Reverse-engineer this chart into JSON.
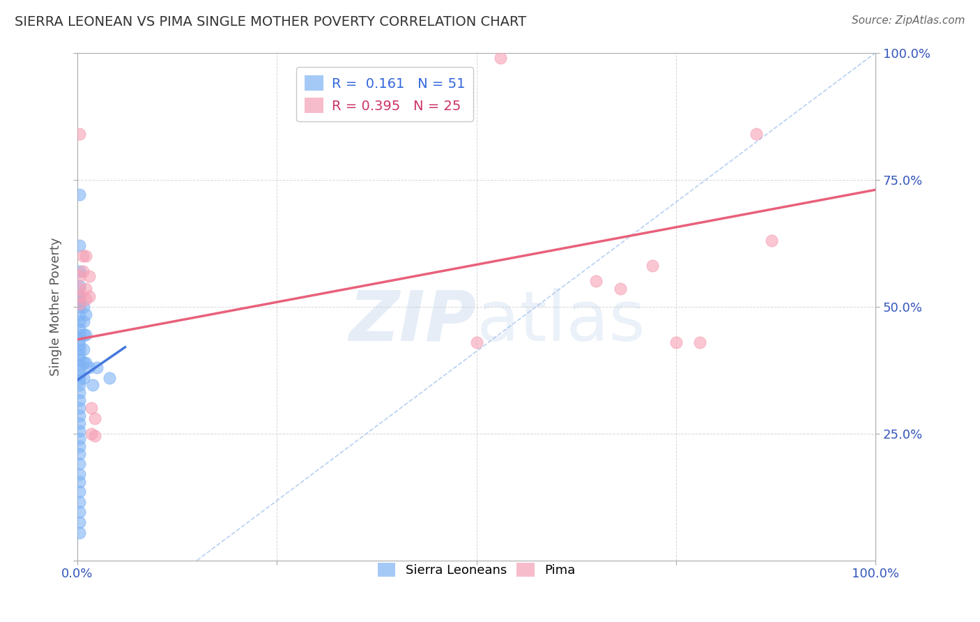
{
  "title": "SIERRA LEONEAN VS PIMA SINGLE MOTHER POVERTY CORRELATION CHART",
  "source": "Source: ZipAtlas.com",
  "ylabel": "Single Mother Poverty",
  "xlim": [
    0.0,
    1.0
  ],
  "ylim": [
    0.0,
    1.0
  ],
  "legend_r_blue": "0.161",
  "legend_n_blue": "51",
  "legend_r_pink": "0.395",
  "legend_n_pink": "25",
  "blue_color": "#7fb3f5",
  "pink_color": "#f5a0b5",
  "blue_scatter": [
    [
      0.003,
      0.72
    ],
    [
      0.003,
      0.62
    ],
    [
      0.003,
      0.57
    ],
    [
      0.003,
      0.54
    ],
    [
      0.003,
      0.52
    ],
    [
      0.003,
      0.51
    ],
    [
      0.003,
      0.5
    ],
    [
      0.003,
      0.485
    ],
    [
      0.003,
      0.47
    ],
    [
      0.003,
      0.455
    ],
    [
      0.003,
      0.445
    ],
    [
      0.003,
      0.435
    ],
    [
      0.003,
      0.425
    ],
    [
      0.003,
      0.415
    ],
    [
      0.003,
      0.405
    ],
    [
      0.003,
      0.395
    ],
    [
      0.003,
      0.385
    ],
    [
      0.003,
      0.375
    ],
    [
      0.003,
      0.365
    ],
    [
      0.003,
      0.355
    ],
    [
      0.003,
      0.345
    ],
    [
      0.003,
      0.33
    ],
    [
      0.003,
      0.315
    ],
    [
      0.003,
      0.3
    ],
    [
      0.003,
      0.285
    ],
    [
      0.003,
      0.27
    ],
    [
      0.003,
      0.255
    ],
    [
      0.003,
      0.24
    ],
    [
      0.003,
      0.225
    ],
    [
      0.003,
      0.21
    ],
    [
      0.003,
      0.19
    ],
    [
      0.003,
      0.17
    ],
    [
      0.003,
      0.155
    ],
    [
      0.003,
      0.135
    ],
    [
      0.003,
      0.115
    ],
    [
      0.003,
      0.095
    ],
    [
      0.003,
      0.075
    ],
    [
      0.003,
      0.055
    ],
    [
      0.008,
      0.5
    ],
    [
      0.008,
      0.47
    ],
    [
      0.008,
      0.445
    ],
    [
      0.008,
      0.415
    ],
    [
      0.008,
      0.39
    ],
    [
      0.008,
      0.36
    ],
    [
      0.011,
      0.485
    ],
    [
      0.011,
      0.445
    ],
    [
      0.011,
      0.39
    ],
    [
      0.015,
      0.38
    ],
    [
      0.019,
      0.345
    ],
    [
      0.025,
      0.38
    ],
    [
      0.04,
      0.36
    ]
  ],
  "pink_scatter": [
    [
      0.003,
      0.84
    ],
    [
      0.003,
      0.56
    ],
    [
      0.003,
      0.535
    ],
    [
      0.003,
      0.52
    ],
    [
      0.003,
      0.505
    ],
    [
      0.007,
      0.6
    ],
    [
      0.007,
      0.57
    ],
    [
      0.011,
      0.6
    ],
    [
      0.011,
      0.535
    ],
    [
      0.011,
      0.515
    ],
    [
      0.015,
      0.56
    ],
    [
      0.015,
      0.52
    ],
    [
      0.018,
      0.3
    ],
    [
      0.018,
      0.25
    ],
    [
      0.022,
      0.28
    ],
    [
      0.022,
      0.245
    ],
    [
      0.5,
      0.43
    ],
    [
      0.53,
      0.99
    ],
    [
      0.65,
      0.55
    ],
    [
      0.68,
      0.535
    ],
    [
      0.72,
      0.58
    ],
    [
      0.75,
      0.43
    ],
    [
      0.78,
      0.43
    ],
    [
      0.85,
      0.84
    ],
    [
      0.87,
      0.63
    ]
  ],
  "blue_line_x": [
    0.0,
    0.06
  ],
  "blue_line_y": [
    0.355,
    0.42
  ],
  "pink_line_x": [
    0.0,
    1.0
  ],
  "pink_line_y": [
    0.435,
    0.73
  ],
  "diag_line_x": [
    0.15,
    1.0
  ],
  "diag_line_y": [
    0.0,
    1.0
  ],
  "grid_color": "#cccccc",
  "background_color": "#ffffff",
  "title_color": "#333333",
  "source_color": "#666666",
  "tick_color": "#3355bb",
  "axis_label_color": "#555555"
}
